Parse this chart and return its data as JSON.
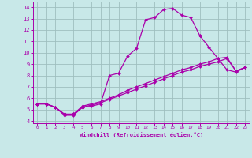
{
  "xlabel": "Windchill (Refroidissement éolien,°C)",
  "xlim": [
    -0.5,
    23.5
  ],
  "ylim": [
    3.8,
    14.5
  ],
  "xticks": [
    0,
    1,
    2,
    3,
    4,
    5,
    6,
    7,
    8,
    9,
    10,
    11,
    12,
    13,
    14,
    15,
    16,
    17,
    18,
    19,
    20,
    21,
    22,
    23
  ],
  "yticks": [
    4,
    5,
    6,
    7,
    8,
    9,
    10,
    11,
    12,
    13,
    14
  ],
  "bg_color": "#c8e8e8",
  "grid_color": "#b8d8d8",
  "line_color": "#aa00aa",
  "lines": [
    {
      "x": [
        0,
        1,
        2,
        3,
        4,
        5,
        6,
        7,
        8,
        9,
        10,
        11,
        12,
        13,
        14,
        15,
        16,
        17,
        18
      ],
      "y": [
        5.5,
        5.5,
        5.2,
        4.5,
        4.5,
        5.2,
        5.3,
        5.5,
        8.0,
        8.2,
        9.7,
        10.4,
        12.9,
        13.1,
        13.8,
        13.9,
        13.3,
        13.1,
        11.5
      ]
    },
    {
      "x": [
        18,
        19,
        20,
        21,
        22,
        23
      ],
      "y": [
        11.5,
        10.5,
        9.5,
        8.5,
        8.3,
        8.7
      ]
    },
    {
      "x": [
        0,
        1,
        2,
        3,
        4,
        5,
        6,
        7,
        8,
        9,
        10,
        11,
        12,
        13,
        14,
        15,
        16,
        17,
        18,
        19,
        20,
        21,
        22,
        23
      ],
      "y": [
        5.5,
        5.5,
        5.2,
        4.6,
        4.6,
        5.3,
        5.5,
        5.7,
        6.0,
        6.3,
        6.7,
        7.0,
        7.3,
        7.6,
        7.9,
        8.2,
        8.5,
        8.7,
        9.0,
        9.2,
        9.5,
        9.6,
        8.4,
        8.7
      ]
    },
    {
      "x": [
        0,
        1,
        2,
        3,
        4,
        5,
        6,
        7,
        8,
        9,
        10,
        11,
        12,
        13,
        14,
        15,
        16,
        17,
        18,
        19,
        20,
        21,
        22,
        23
      ],
      "y": [
        5.5,
        5.5,
        5.2,
        4.6,
        4.6,
        5.2,
        5.4,
        5.6,
        5.9,
        6.2,
        6.5,
        6.8,
        7.1,
        7.4,
        7.7,
        8.0,
        8.3,
        8.5,
        8.8,
        9.0,
        9.2,
        9.5,
        8.4,
        8.7
      ]
    }
  ]
}
